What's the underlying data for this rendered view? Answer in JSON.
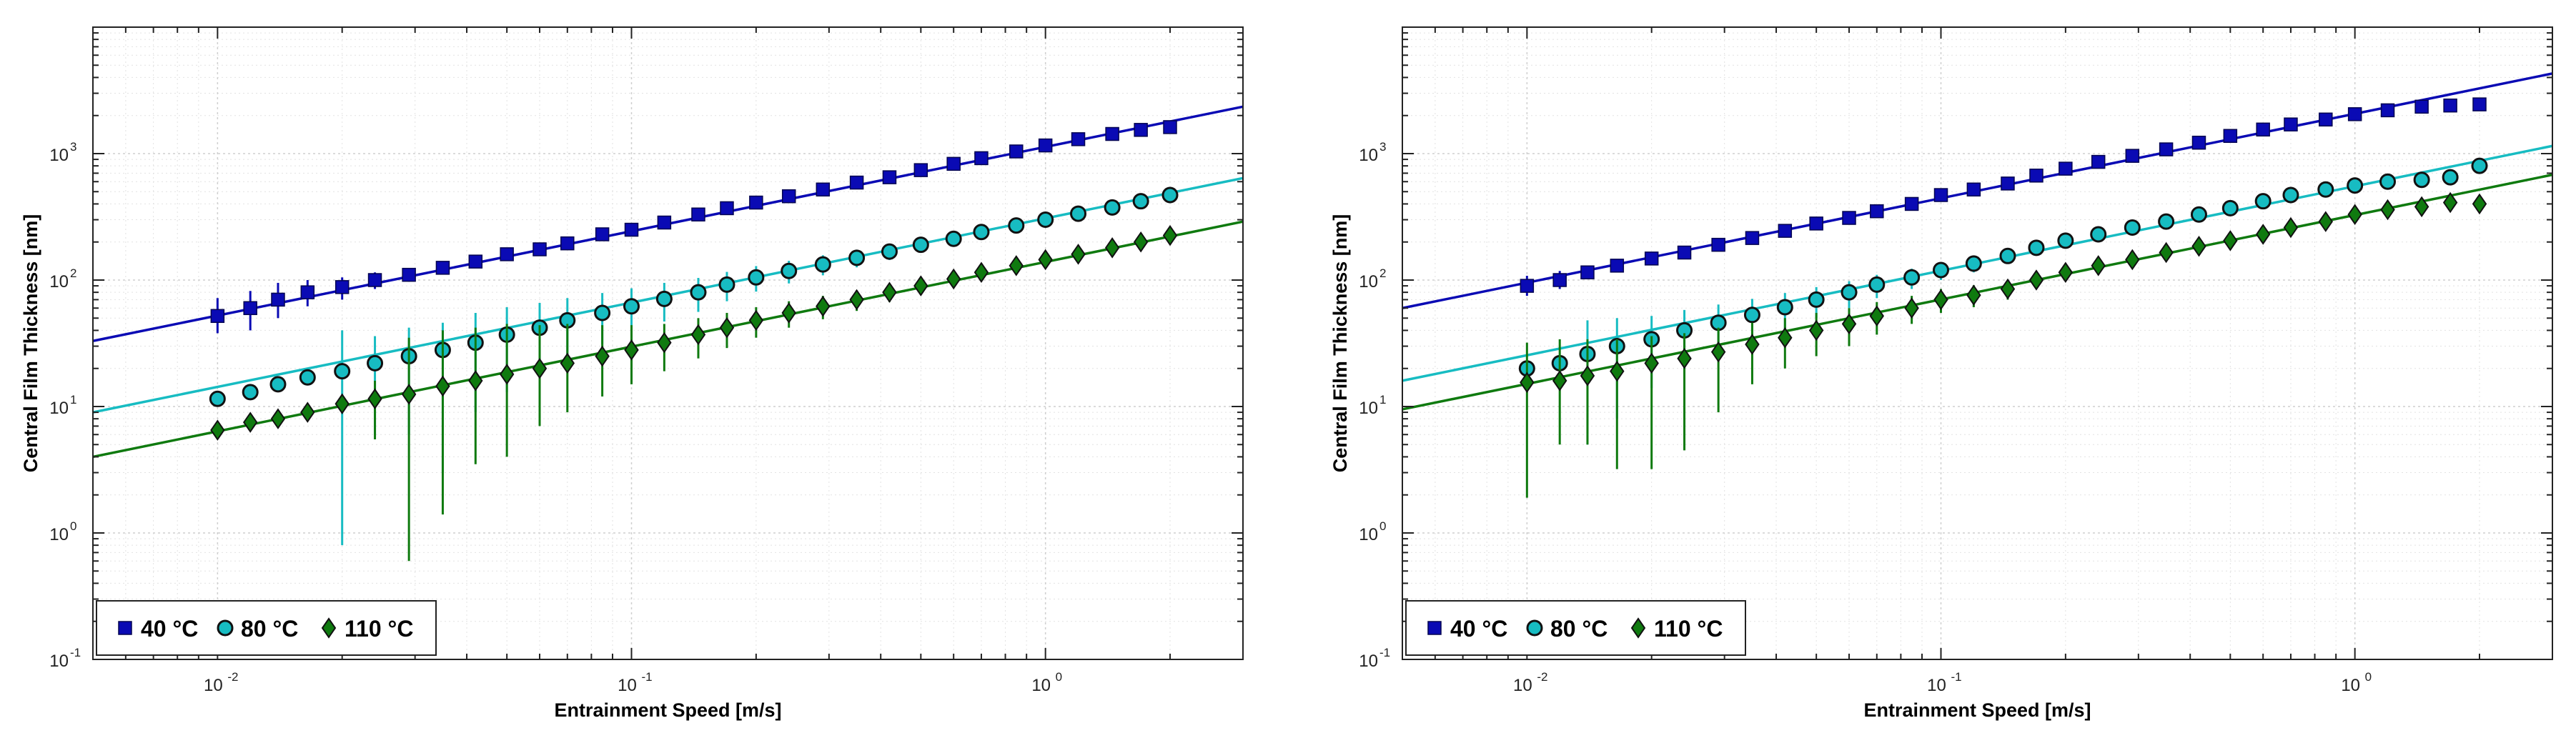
{
  "chart_data": [
    {
      "type": "scatter",
      "x_scale": "log",
      "y_scale": "log",
      "xlabel": "Entrainment Speed [m/s]",
      "ylabel": "Central Film Thickness [nm]",
      "xlim": [
        0.005,
        3
      ],
      "ylim": [
        0.1,
        10000
      ],
      "grid": true,
      "legend_position": "bottom-left",
      "x_ticks": [
        {
          "value": 0.01,
          "base": "10",
          "exp": "-2"
        },
        {
          "value": 0.1,
          "base": "10",
          "exp": "-1"
        },
        {
          "value": 1,
          "base": "10",
          "exp": "0"
        }
      ],
      "y_ticks": [
        {
          "value": 0.1,
          "base": "10",
          "exp": "-1"
        },
        {
          "value": 1,
          "base": "10",
          "exp": "0"
        },
        {
          "value": 10,
          "base": "10",
          "exp": "1"
        },
        {
          "value": 100,
          "base": "10",
          "exp": "2"
        },
        {
          "value": 1000,
          "base": "10",
          "exp": "3"
        }
      ],
      "series": [
        {
          "name": "40 °C",
          "label": "40",
          "unit": "°C",
          "color": "#0a0ab4",
          "marker": "square",
          "fit": {
            "x": [
              0.005,
              3
            ],
            "y": [
              33,
              2350
            ]
          },
          "x": [
            0.01,
            0.012,
            0.014,
            0.0165,
            0.02,
            0.024,
            0.029,
            0.035,
            0.042,
            0.05,
            0.06,
            0.07,
            0.085,
            0.1,
            0.12,
            0.145,
            0.17,
            0.2,
            0.24,
            0.29,
            0.35,
            0.42,
            0.5,
            0.6,
            0.7,
            0.85,
            1.0,
            1.2,
            1.45,
            1.7,
            2.0
          ],
          "y": [
            52,
            60,
            70,
            80,
            88,
            100,
            110,
            125,
            140,
            160,
            175,
            195,
            230,
            250,
            285,
            330,
            370,
            410,
            460,
            520,
            590,
            650,
            740,
            830,
            920,
            1040,
            1160,
            1300,
            1430,
            1540,
            1620
          ],
          "err_lo": [
            38,
            40,
            50,
            62,
            70,
            85,
            97,
            112,
            127,
            147,
            163,
            183,
            217,
            237,
            272,
            317,
            357,
            397,
            447,
            507,
            577,
            637,
            727,
            817,
            907,
            1027,
            1147,
            1287,
            1417,
            1527,
            1607
          ],
          "err_hi": [
            72,
            82,
            95,
            100,
            105,
            115,
            123,
            138,
            153,
            173,
            187,
            207,
            243,
            263,
            298,
            343,
            383,
            423,
            473,
            533,
            603,
            663,
            753,
            843,
            933,
            1053,
            1173,
            1313,
            1443,
            1553,
            1633
          ]
        },
        {
          "name": "80 °C",
          "label": "80",
          "unit": "°C",
          "color": "#17bcc2",
          "marker": "circle",
          "fit": {
            "x": [
              0.005,
              3
            ],
            "y": [
              9,
              640
            ]
          },
          "x": [
            0.01,
            0.012,
            0.014,
            0.0165,
            0.02,
            0.024,
            0.029,
            0.035,
            0.042,
            0.05,
            0.06,
            0.07,
            0.085,
            0.1,
            0.12,
            0.145,
            0.17,
            0.2,
            0.24,
            0.29,
            0.35,
            0.42,
            0.5,
            0.6,
            0.7,
            0.85,
            1.0,
            1.2,
            1.45,
            1.7,
            2.0
          ],
          "y": [
            11.5,
            13,
            15,
            17,
            19,
            22,
            25,
            28,
            32,
            37,
            42,
            48,
            55,
            62,
            71,
            80,
            92,
            105,
            118,
            133,
            150,
            168,
            190,
            212,
            240,
            270,
            300,
            335,
            375,
            420,
            470
          ],
          "err_lo": [
            11.5,
            13,
            15,
            17,
            0.8,
            6,
            6,
            3,
            9,
            13,
            18,
            24,
            31,
            38,
            47,
            56,
            68,
            81,
            94,
            109,
            126,
            144,
            166,
            188,
            216,
            246,
            276,
            311,
            351,
            396,
            446
          ],
          "err_hi": [
            11.5,
            13,
            15,
            17,
            40,
            36,
            42,
            46,
            55,
            61,
            66,
            72,
            79,
            86,
            95,
            104,
            116,
            129,
            142,
            157,
            174,
            192,
            214,
            236,
            264,
            294,
            324,
            359,
            399,
            444,
            494
          ]
        },
        {
          "name": "110 °C",
          "label": "110",
          "unit": "°C",
          "color": "#0f7a0f",
          "marker": "diamond",
          "fit": {
            "x": [
              0.005,
              3
            ],
            "y": [
              4,
              290
            ]
          },
          "x": [
            0.01,
            0.012,
            0.014,
            0.0165,
            0.02,
            0.024,
            0.029,
            0.035,
            0.042,
            0.05,
            0.06,
            0.07,
            0.085,
            0.1,
            0.12,
            0.145,
            0.17,
            0.2,
            0.24,
            0.29,
            0.35,
            0.42,
            0.5,
            0.6,
            0.7,
            0.85,
            1.0,
            1.2,
            1.45,
            1.7,
            2.0
          ],
          "y": [
            6.5,
            7.5,
            8,
            9,
            10.5,
            11.5,
            12.5,
            14.5,
            16,
            18,
            20,
            22,
            25,
            28,
            32,
            37,
            42,
            48,
            55,
            62,
            70,
            80,
            90,
            102,
            115,
            130,
            145,
            160,
            180,
            200,
            225
          ],
          "err_lo": [
            6.5,
            7.5,
            8,
            9,
            10.5,
            5.5,
            0.6,
            1.4,
            3.5,
            4,
            7,
            9,
            12,
            15,
            19,
            24,
            29,
            35,
            42,
            49,
            57,
            67,
            77,
            89,
            102,
            117,
            132,
            147,
            167,
            187,
            212
          ],
          "err_hi": [
            6.5,
            7.5,
            8,
            9,
            10.5,
            16,
            35,
            40,
            42,
            45,
            44,
            45,
            44,
            44,
            45,
            50,
            55,
            61,
            68,
            75,
            83,
            93,
            103,
            115,
            128,
            143,
            158,
            173,
            193,
            213,
            238
          ]
        }
      ]
    },
    {
      "type": "scatter",
      "x_scale": "log",
      "y_scale": "log",
      "xlabel": "Entrainment Speed [m/s]",
      "ylabel": "Central Film Thickness [nm]",
      "xlim": [
        0.005,
        3
      ],
      "ylim": [
        0.1,
        10000
      ],
      "grid": true,
      "legend_position": "bottom-left",
      "x_ticks": [
        {
          "value": 0.01,
          "base": "10",
          "exp": "-2"
        },
        {
          "value": 0.1,
          "base": "10",
          "exp": "-1"
        },
        {
          "value": 1,
          "base": "10",
          "exp": "0"
        }
      ],
      "y_ticks": [
        {
          "value": 0.1,
          "base": "10",
          "exp": "-1"
        },
        {
          "value": 1,
          "base": "10",
          "exp": "0"
        },
        {
          "value": 10,
          "base": "10",
          "exp": "1"
        },
        {
          "value": 100,
          "base": "10",
          "exp": "2"
        },
        {
          "value": 1000,
          "base": "10",
          "exp": "3"
        }
      ],
      "series": [
        {
          "name": "40 °C",
          "label": "40",
          "unit": "°C",
          "color": "#0a0ab4",
          "marker": "square",
          "fit": {
            "x": [
              0.005,
              3
            ],
            "y": [
              60,
              4300
            ]
          },
          "x": [
            0.01,
            0.012,
            0.014,
            0.0165,
            0.02,
            0.024,
            0.029,
            0.035,
            0.042,
            0.05,
            0.06,
            0.07,
            0.085,
            0.1,
            0.12,
            0.145,
            0.17,
            0.2,
            0.24,
            0.29,
            0.35,
            0.42,
            0.5,
            0.6,
            0.7,
            0.85,
            1.0,
            1.2,
            1.45,
            1.7,
            2.0
          ],
          "y": [
            90,
            100,
            115,
            130,
            148,
            165,
            190,
            215,
            245,
            280,
            310,
            350,
            400,
            470,
            520,
            580,
            670,
            760,
            860,
            960,
            1080,
            1220,
            1380,
            1550,
            1700,
            1860,
            2050,
            2200,
            2350,
            2400,
            2450
          ],
          "err_lo": [
            75,
            85,
            105,
            122,
            140,
            157,
            182,
            207,
            237,
            272,
            302,
            342,
            392,
            462,
            512,
            572,
            662,
            752,
            852,
            952,
            1072,
            1212,
            1372,
            1542,
            1692,
            1852,
            2042,
            2192,
            2342,
            2392,
            2442
          ],
          "err_hi": [
            108,
            118,
            125,
            138,
            156,
            173,
            198,
            223,
            253,
            288,
            318,
            358,
            408,
            478,
            528,
            588,
            678,
            768,
            868,
            968,
            1088,
            1228,
            1388,
            1558,
            1708,
            1868,
            2058,
            2208,
            2358,
            2408,
            2458
          ]
        },
        {
          "name": "80 °C",
          "label": "80",
          "unit": "°C",
          "color": "#17bcc2",
          "marker": "circle",
          "fit": {
            "x": [
              0.005,
              3
            ],
            "y": [
              16,
              1150
            ]
          },
          "x": [
            0.01,
            0.012,
            0.014,
            0.0165,
            0.02,
            0.024,
            0.029,
            0.035,
            0.042,
            0.05,
            0.06,
            0.07,
            0.085,
            0.1,
            0.12,
            0.145,
            0.17,
            0.2,
            0.24,
            0.29,
            0.35,
            0.42,
            0.5,
            0.6,
            0.7,
            0.85,
            1.0,
            1.2,
            1.45,
            1.7,
            2.0
          ],
          "y": [
            20,
            22,
            26,
            30,
            34,
            40,
            46,
            53,
            61,
            70,
            80,
            92,
            105,
            120,
            135,
            155,
            180,
            205,
            230,
            260,
            290,
            330,
            370,
            420,
            470,
            520,
            560,
            600,
            620,
            650,
            800
          ],
          "err_lo": [
            20,
            22,
            5,
            8,
            14,
            20,
            26,
            33,
            41,
            50,
            60,
            72,
            85,
            100,
            115,
            135,
            160,
            185,
            210,
            240,
            270,
            310,
            350,
            400,
            450,
            500,
            540,
            580,
            600,
            630,
            780
          ],
          "err_hi": [
            20,
            22,
            48,
            50,
            52,
            58,
            64,
            71,
            79,
            88,
            98,
            110,
            123,
            138,
            153,
            173,
            198,
            223,
            248,
            278,
            308,
            348,
            388,
            438,
            488,
            538,
            578,
            618,
            638,
            668,
            818
          ]
        },
        {
          "name": "110 °C",
          "label": "110",
          "unit": "°C",
          "color": "#0f7a0f",
          "marker": "diamond",
          "fit": {
            "x": [
              0.005,
              3
            ],
            "y": [
              9.5,
              680
            ]
          },
          "x": [
            0.01,
            0.012,
            0.014,
            0.0165,
            0.02,
            0.024,
            0.029,
            0.035,
            0.042,
            0.05,
            0.06,
            0.07,
            0.085,
            0.1,
            0.12,
            0.145,
            0.17,
            0.2,
            0.24,
            0.29,
            0.35,
            0.42,
            0.5,
            0.6,
            0.7,
            0.85,
            1.0,
            1.2,
            1.45,
            1.7,
            2.0
          ],
          "y": [
            15.5,
            16,
            17.5,
            19,
            22,
            24,
            27,
            31,
            35,
            40,
            45,
            52,
            60,
            70,
            76,
            85,
            100,
            115,
            130,
            145,
            165,
            185,
            205,
            230,
            260,
            290,
            330,
            360,
            380,
            410,
            400
          ],
          "err_lo": [
            1.9,
            5,
            5,
            3.2,
            3.2,
            4.5,
            9,
            15,
            20,
            25,
            30,
            37,
            45,
            55,
            61,
            70,
            85,
            100,
            115,
            130,
            150,
            170,
            190,
            215,
            245,
            275,
            315,
            345,
            365,
            395,
            385
          ],
          "err_hi": [
            32,
            34,
            34,
            34,
            36,
            38,
            42,
            46,
            50,
            55,
            60,
            67,
            75,
            85,
            91,
            100,
            115,
            130,
            145,
            160,
            180,
            200,
            220,
            245,
            275,
            305,
            345,
            375,
            395,
            425,
            415
          ]
        }
      ]
    }
  ]
}
